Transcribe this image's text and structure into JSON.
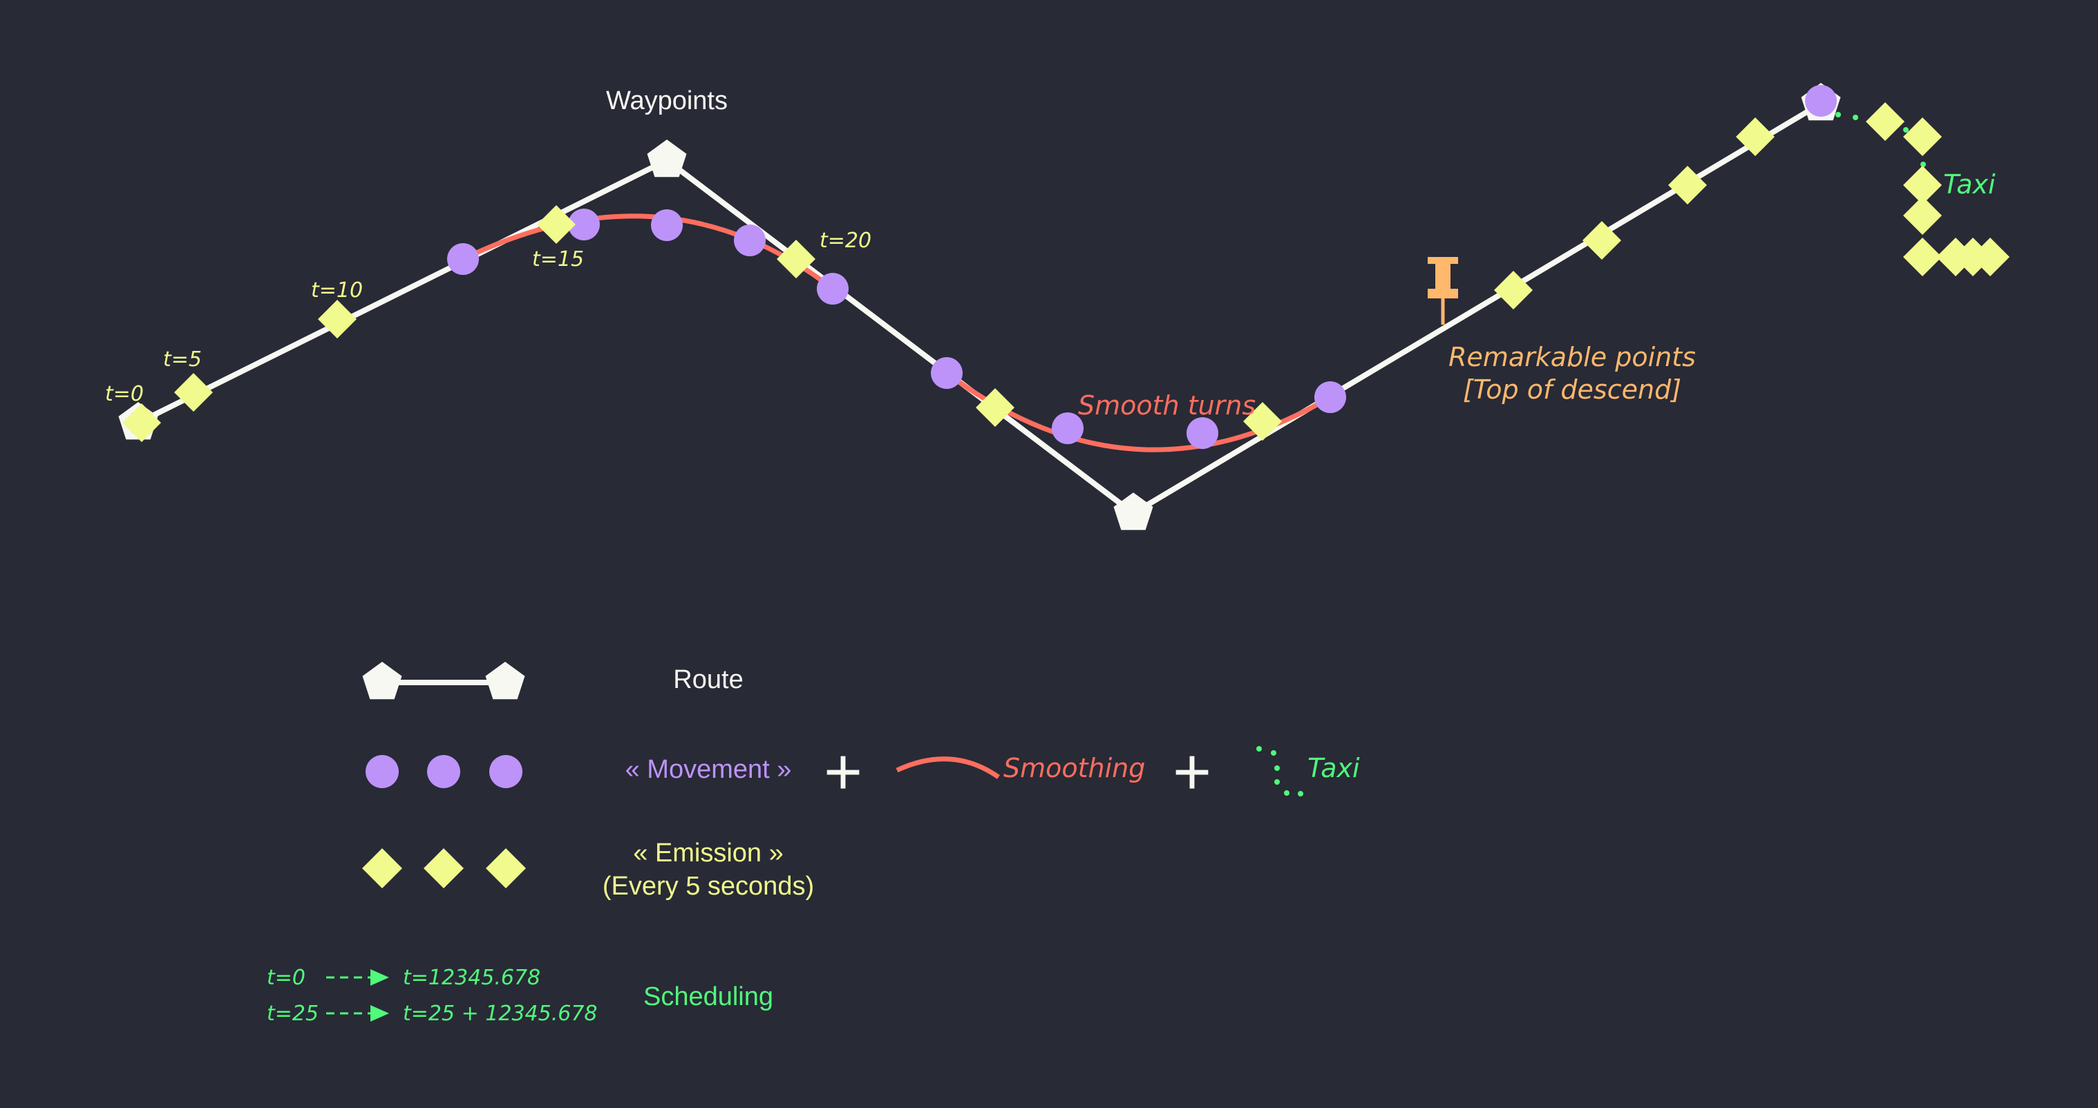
{
  "title": "Waypoints",
  "time_labels": [
    "t=0",
    "t=5",
    "t=10",
    "t=15",
    "t=20"
  ],
  "annotations": {
    "smooth_turns": "Smooth turns",
    "remarkable_line1": "Remarkable points",
    "remarkable_line2": "[Top of descend]",
    "taxi": "Taxi"
  },
  "legend": {
    "route": "Route",
    "movement": "« Movement »",
    "plus": "+",
    "smoothing": "Smoothing",
    "taxi": "Taxi",
    "emission_line1": "« Emission »",
    "emission_line2": "(Every 5 seconds)",
    "scheduling": "Scheduling",
    "schedule": [
      {
        "from": "t=0",
        "to": "t=12345.678"
      },
      {
        "from": "t=25",
        "to": "t=25 + 12345.678"
      }
    ]
  },
  "colors": {
    "background": "#282a36",
    "route": "#f8f8f2",
    "movement": "#bd93f9",
    "smoothing": "#ff6e5e",
    "emission": "#f1fa8c",
    "taxi": "#50fa7b",
    "remarkable": "#ffb86c"
  }
}
